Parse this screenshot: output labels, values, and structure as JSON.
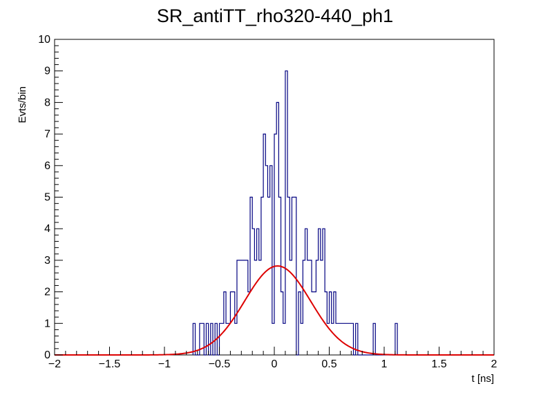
{
  "chart_data": {
    "type": "histogram",
    "title": "SR_antiTT_rho320-440_ph1",
    "xlabel": "t [ns]",
    "ylabel": "Evts/bin",
    "xlim": [
      -2,
      2
    ],
    "ylim": [
      0,
      10
    ],
    "x_ticks": [
      -2,
      -1.5,
      -1,
      -0.5,
      0,
      0.5,
      1,
      1.5,
      2
    ],
    "x_tick_labels": [
      "−2",
      "−1.5",
      "−1",
      "−0.5",
      "0",
      "0.5",
      "1",
      "1.5",
      "2"
    ],
    "y_ticks": [
      0,
      1,
      2,
      3,
      4,
      5,
      6,
      7,
      8,
      9,
      10
    ],
    "y_tick_labels": [
      "0",
      "1",
      "2",
      "3",
      "4",
      "5",
      "6",
      "7",
      "8",
      "9",
      "10"
    ],
    "bin_width": 0.02,
    "series": [
      {
        "kind": "histogram",
        "color": "#000080",
        "bins": [
          [
            -0.74,
            1
          ],
          [
            -0.68,
            1
          ],
          [
            -0.66,
            1
          ],
          [
            -0.62,
            1
          ],
          [
            -0.58,
            1
          ],
          [
            -0.54,
            1
          ],
          [
            -0.5,
            1
          ],
          [
            -0.48,
            1
          ],
          [
            -0.46,
            2
          ],
          [
            -0.44,
            1
          ],
          [
            -0.42,
            1
          ],
          [
            -0.4,
            2
          ],
          [
            -0.38,
            2
          ],
          [
            -0.36,
            1
          ],
          [
            -0.34,
            3
          ],
          [
            -0.32,
            3
          ],
          [
            -0.3,
            3
          ],
          [
            -0.28,
            3
          ],
          [
            -0.26,
            3
          ],
          [
            -0.24,
            2
          ],
          [
            -0.22,
            5
          ],
          [
            -0.2,
            4
          ],
          [
            -0.18,
            3
          ],
          [
            -0.16,
            4
          ],
          [
            -0.14,
            3
          ],
          [
            -0.12,
            5
          ],
          [
            -0.1,
            7
          ],
          [
            -0.08,
            6
          ],
          [
            -0.06,
            5
          ],
          [
            -0.04,
            6
          ],
          [
            -0.02,
            1
          ],
          [
            0,
            7
          ],
          [
            0.02,
            8
          ],
          [
            0.04,
            5
          ],
          [
            0.06,
            2
          ],
          [
            0.08,
            1
          ],
          [
            0.1,
            9
          ],
          [
            0.12,
            5
          ],
          [
            0.14,
            3
          ],
          [
            0.16,
            5
          ],
          [
            0.18,
            5
          ],
          [
            0.2,
            0
          ],
          [
            0.22,
            2
          ],
          [
            0.24,
            1
          ],
          [
            0.26,
            3
          ],
          [
            0.28,
            4
          ],
          [
            0.3,
            3
          ],
          [
            0.32,
            3
          ],
          [
            0.34,
            2
          ],
          [
            0.36,
            2
          ],
          [
            0.38,
            3
          ],
          [
            0.4,
            4
          ],
          [
            0.42,
            3
          ],
          [
            0.44,
            4
          ],
          [
            0.46,
            2
          ],
          [
            0.48,
            1
          ],
          [
            0.5,
            2
          ],
          [
            0.52,
            1
          ],
          [
            0.54,
            2
          ],
          [
            0.56,
            1
          ],
          [
            0.58,
            1
          ],
          [
            0.6,
            1
          ],
          [
            0.62,
            1
          ],
          [
            0.64,
            1
          ],
          [
            0.66,
            1
          ],
          [
            0.68,
            1
          ],
          [
            0.7,
            1
          ],
          [
            0.74,
            1
          ],
          [
            0.9,
            1
          ],
          [
            1.1,
            1
          ]
        ]
      },
      {
        "kind": "gaussian_fit",
        "color": "#dd0000",
        "amplitude": 2.82,
        "mean": 0.03,
        "sigma": 0.3
      }
    ],
    "grid": false,
    "legend": false
  }
}
